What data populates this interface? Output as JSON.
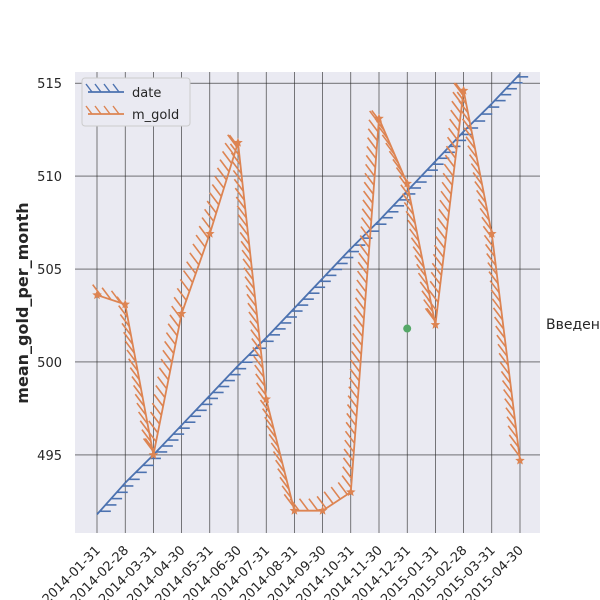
{
  "chart_data": {
    "type": "line",
    "title": "",
    "xlabel": "",
    "ylabel": "mean_gold_per_month",
    "x_tick_labels": [
      "2014-01-31",
      "2014-02-28",
      "2014-03-31",
      "2014-04-30",
      "2014-05-31",
      "2014-06-30",
      "2014-07-31",
      "2014-08-31",
      "2014-09-30",
      "2014-10-31",
      "2014-11-30",
      "2014-12-31",
      "2015-01-31",
      "2015-02-28",
      "2015-03-31",
      "2015-04-30"
    ],
    "y_ticks": [
      495,
      500,
      505,
      510,
      515
    ],
    "ylim": [
      490.8,
      515.6
    ],
    "grid": true,
    "legend": {
      "placement": "top-left",
      "entries": [
        "date",
        "m_gold"
      ]
    },
    "series": [
      {
        "name": "date",
        "color": "#4c72b0",
        "style": "line-with-hatch",
        "values": [
          491.8,
          493.5,
          495.0,
          496.6,
          498.2,
          499.8,
          501.3,
          502.9,
          504.5,
          506.1,
          507.6,
          509.2,
          510.8,
          512.4,
          513.9,
          515.5
        ]
      },
      {
        "name": "m_gold",
        "color": "#dd8452",
        "style": "line-with-hatch",
        "values": [
          503.6,
          503.1,
          495.0,
          502.6,
          506.9,
          511.8,
          498.0,
          492.0,
          492.0,
          493.0,
          513.1,
          509.6,
          502.0,
          514.6,
          506.9,
          494.7
        ]
      }
    ],
    "annotations": [
      {
        "text": "Введен",
        "color": "#262626"
      },
      {
        "text": "",
        "marker": "point",
        "color": "#55a868",
        "x": "2014-12-31",
        "y": 501.8
      }
    ]
  }
}
